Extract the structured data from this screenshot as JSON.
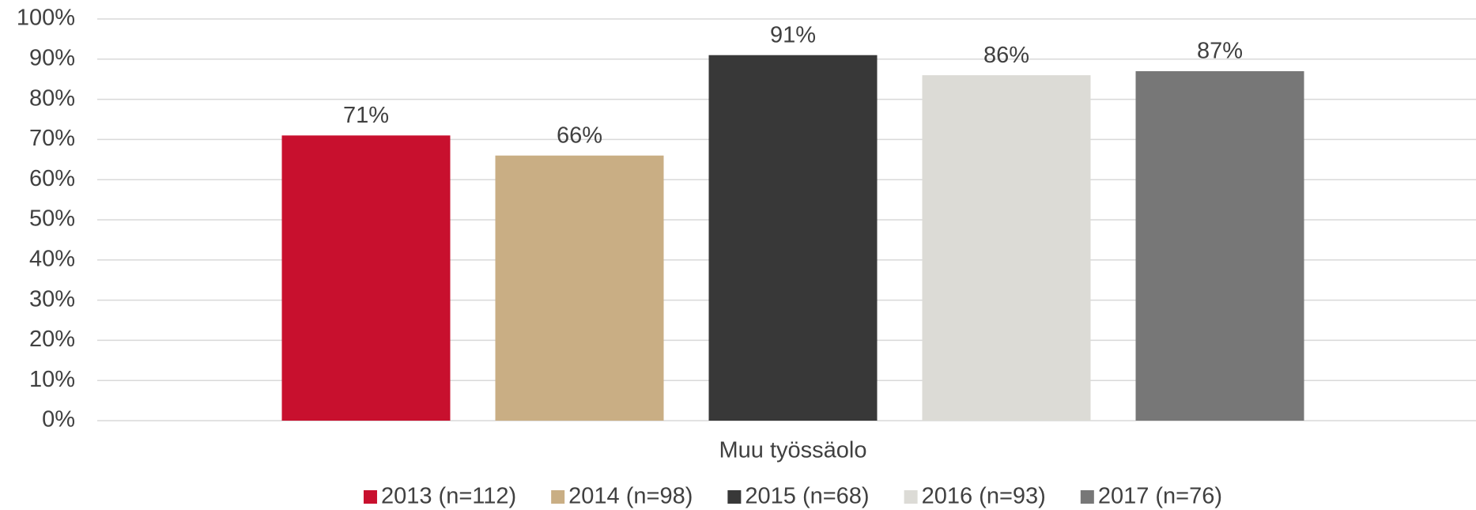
{
  "chart_data": {
    "type": "bar",
    "categories": [
      "Muu työssäolo"
    ],
    "series": [
      {
        "name": "2013 (n=112)",
        "color": "#c8102e",
        "values": [
          71
        ],
        "value_labels": [
          "71%"
        ]
      },
      {
        "name": "2014 (n=98)",
        "color": "#c9ae84",
        "values": [
          66
        ],
        "value_labels": [
          "66%"
        ]
      },
      {
        "name": "2015 (n=68)",
        "color": "#383838",
        "values": [
          91
        ],
        "value_labels": [
          "91%"
        ]
      },
      {
        "name": "2016 (n=93)",
        "color": "#dcdbd6",
        "values": [
          86
        ],
        "value_labels": [
          "86%"
        ]
      },
      {
        "name": "2017 (n=76)",
        "color": "#777777",
        "values": [
          87
        ],
        "value_labels": [
          "87%"
        ]
      }
    ],
    "ylim": [
      0,
      100
    ],
    "yticks": [
      {
        "value": 0,
        "label": "0%"
      },
      {
        "value": 10,
        "label": "10%"
      },
      {
        "value": 20,
        "label": "20%"
      },
      {
        "value": 30,
        "label": "30%"
      },
      {
        "value": 40,
        "label": "40%"
      },
      {
        "value": 50,
        "label": "50%"
      },
      {
        "value": 60,
        "label": "60%"
      },
      {
        "value": 70,
        "label": "70%"
      },
      {
        "value": 80,
        "label": "80%"
      },
      {
        "value": 90,
        "label": "90%"
      },
      {
        "value": 100,
        "label": "100%"
      }
    ],
    "grid": true,
    "legend": "bottom"
  }
}
